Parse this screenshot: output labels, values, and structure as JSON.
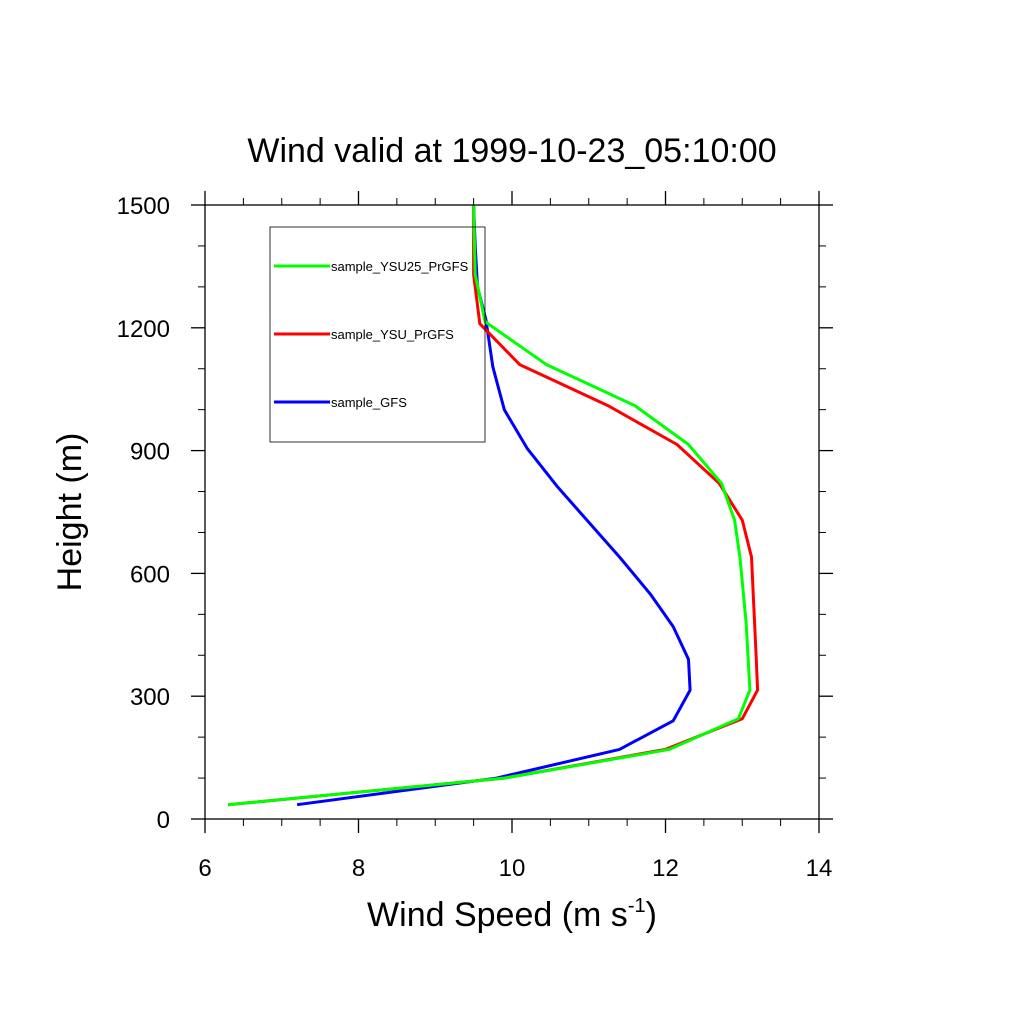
{
  "chart_data": {
    "type": "line",
    "title": "Wind valid at 1999-10-23_05:10:00",
    "xlabel": "Wind Speed (m s",
    "xlabel_sup": "-1",
    "xlabel_end": ")",
    "ylabel": "Height (m)",
    "xlim": [
      6,
      14
    ],
    "ylim": [
      0,
      1500
    ],
    "xticks": [
      6,
      8,
      10,
      12,
      14
    ],
    "yticks": [
      0,
      300,
      600,
      900,
      1200,
      1500
    ],
    "legend_position": "top-left",
    "series": [
      {
        "name": "sample_YSU25_PrGFS",
        "color": "#00ff00",
        "points": [
          [
            6.3,
            35
          ],
          [
            9.9,
            100
          ],
          [
            12.05,
            170
          ],
          [
            12.95,
            245
          ],
          [
            13.1,
            315
          ],
          [
            13.05,
            480
          ],
          [
            12.97,
            640
          ],
          [
            12.9,
            730
          ],
          [
            12.73,
            820
          ],
          [
            12.3,
            915
          ],
          [
            11.6,
            1010
          ],
          [
            10.45,
            1110
          ],
          [
            9.65,
            1215
          ],
          [
            9.52,
            1330
          ],
          [
            9.5,
            1500
          ]
        ]
      },
      {
        "name": "sample_YSU_PrGFS",
        "color": "#ff0000",
        "points": [
          [
            6.3,
            35
          ],
          [
            9.9,
            100
          ],
          [
            12.0,
            170
          ],
          [
            13.0,
            245
          ],
          [
            13.2,
            315
          ],
          [
            13.18,
            400
          ],
          [
            13.12,
            640
          ],
          [
            13.0,
            730
          ],
          [
            12.7,
            820
          ],
          [
            12.15,
            915
          ],
          [
            11.25,
            1010
          ],
          [
            10.1,
            1110
          ],
          [
            9.58,
            1210
          ],
          [
            9.5,
            1330
          ],
          [
            9.5,
            1500
          ]
        ]
      },
      {
        "name": "sample_GFS",
        "color": "#0000ff",
        "points": [
          [
            7.2,
            35
          ],
          [
            9.8,
            100
          ],
          [
            11.4,
            170
          ],
          [
            12.1,
            240
          ],
          [
            12.32,
            315
          ],
          [
            12.3,
            390
          ],
          [
            12.1,
            470
          ],
          [
            11.8,
            550
          ],
          [
            11.4,
            640
          ],
          [
            10.6,
            810
          ],
          [
            10.2,
            905
          ],
          [
            9.9,
            1000
          ],
          [
            9.75,
            1105
          ],
          [
            9.66,
            1220
          ],
          [
            9.55,
            1300
          ],
          [
            9.52,
            1400
          ],
          [
            9.5,
            1500
          ]
        ]
      }
    ]
  }
}
